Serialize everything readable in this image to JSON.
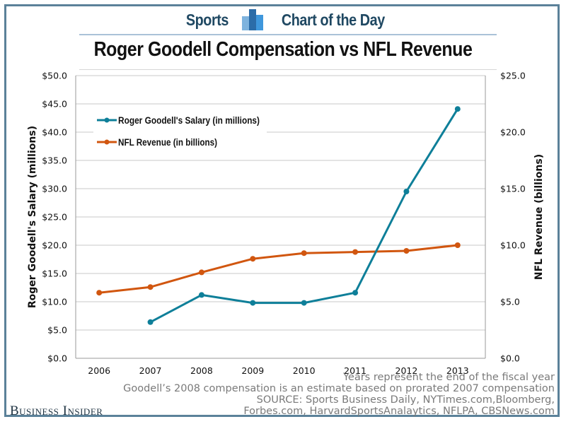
{
  "header": {
    "left_word": "Sports",
    "right_word": "Chart of the Day",
    "logo_icon": "bar-chart-icon"
  },
  "colors": {
    "salary": "#0e7f99",
    "revenue": "#d1560f",
    "frame": "#5b8199",
    "gridline": "#c8c8c8"
  },
  "chart_data": {
    "type": "line",
    "title": "Roger Goodell Compensation vs NFL Revenue",
    "x": [
      "2006",
      "2007",
      "2008",
      "2009",
      "2010",
      "2011",
      "2012",
      "2013"
    ],
    "ylabel": "Roger Goodell's Salary (millions)",
    "y2label": "NFL Revenue (billions)",
    "ylim": [
      0,
      50
    ],
    "y2lim": [
      0,
      25
    ],
    "yticks": [
      "$0.0",
      "$5.0",
      "$10.0",
      "$15.0",
      "$20.0",
      "$25.0",
      "$30.0",
      "$35.0",
      "$40.0",
      "$45.0",
      "$50.0"
    ],
    "y2ticks": [
      "$0.0",
      "$5.0",
      "$10.0",
      "$15.0",
      "$20.0",
      "$25.0"
    ],
    "grid": true,
    "legend_position": "top-left",
    "series": [
      {
        "name": "Roger Goodell's Salary (in millions)",
        "axis": "left",
        "values": [
          null,
          6.4,
          11.2,
          9.8,
          9.8,
          11.6,
          29.5,
          44.1
        ]
      },
      {
        "name": "NFL Revenue (in billions)",
        "axis": "right",
        "values": [
          5.8,
          6.3,
          7.6,
          8.8,
          9.3,
          9.4,
          9.5,
          10.0
        ]
      }
    ]
  },
  "footnotes": [
    "Years represent the end of the fiscal year",
    "Goodell’s 2008 compensation is an estimate based on prorated 2007 compensation",
    "SOURCE: Sports Business Daily, NYTimes.com,Bloomberg,",
    "Forbes.com, HarvardSportsAnalaytics, NFLPA, CBSNews.com"
  ],
  "brand": "Business Insider"
}
